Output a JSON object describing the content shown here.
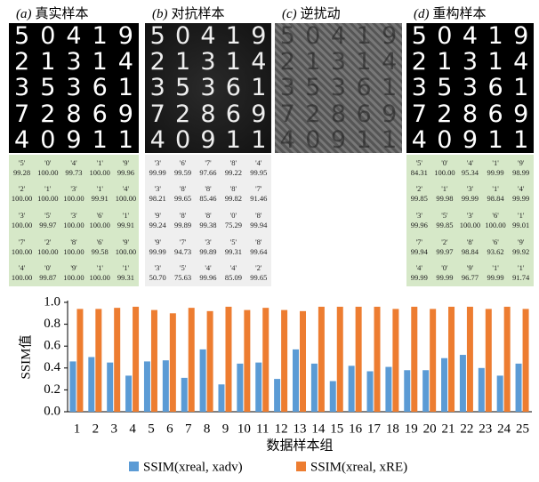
{
  "digits": [
    [
      "5",
      "0",
      "4",
      "1",
      "9"
    ],
    [
      "2",
      "1",
      "3",
      "1",
      "4"
    ],
    [
      "3",
      "5",
      "3",
      "6",
      "1"
    ],
    [
      "7",
      "2",
      "8",
      "6",
      "9"
    ],
    [
      "4",
      "0",
      "9",
      "1",
      "1"
    ]
  ],
  "panels": [
    {
      "tag": "(a)",
      "name": "真实样本",
      "table": [
        [
          {
            "label": "'5'",
            "value": "99.28"
          },
          {
            "label": "'0'",
            "value": "100.00"
          },
          {
            "label": "'4'",
            "value": "99.73"
          },
          {
            "label": "'1'",
            "value": "100.00"
          },
          {
            "label": "'9'",
            "value": "99.96"
          }
        ],
        [
          {
            "label": "'2'",
            "value": "100.00"
          },
          {
            "label": "'1'",
            "value": "100.00"
          },
          {
            "label": "'3'",
            "value": "100.00"
          },
          {
            "label": "'1'",
            "value": "99.91"
          },
          {
            "label": "'4'",
            "value": "100.00"
          }
        ],
        [
          {
            "label": "'3'",
            "value": "100.00"
          },
          {
            "label": "'5'",
            "value": "99.97"
          },
          {
            "label": "'3'",
            "value": "100.00"
          },
          {
            "label": "'6'",
            "value": "100.00"
          },
          {
            "label": "'1'",
            "value": "99.91"
          }
        ],
        [
          {
            "label": "'7'",
            "value": "100.00"
          },
          {
            "label": "'2'",
            "value": "100.00"
          },
          {
            "label": "'8'",
            "value": "100.00"
          },
          {
            "label": "'6'",
            "value": "99.58"
          },
          {
            "label": "'9'",
            "value": "100.00"
          }
        ],
        [
          {
            "label": "'4'",
            "value": "100.00"
          },
          {
            "label": "'0'",
            "value": "99.87"
          },
          {
            "label": "'9'",
            "value": "100.00"
          },
          {
            "label": "'1'",
            "value": "100.00"
          },
          {
            "label": "'1'",
            "value": "99.31"
          }
        ]
      ]
    },
    {
      "tag": "(b)",
      "name": "对抗样本",
      "table": [
        [
          {
            "label": "'3'",
            "value": "99.99"
          },
          {
            "label": "'6'",
            "value": "99.59"
          },
          {
            "label": "'7'",
            "value": "97.66"
          },
          {
            "label": "'8'",
            "value": "99.22"
          },
          {
            "label": "'4'",
            "value": "99.95"
          }
        ],
        [
          {
            "label": "'3'",
            "value": "98.21"
          },
          {
            "label": "'8'",
            "value": "99.65"
          },
          {
            "label": "'8'",
            "value": "85.46"
          },
          {
            "label": "'8'",
            "value": "99.82"
          },
          {
            "label": "'7'",
            "value": "91.46"
          }
        ],
        [
          {
            "label": "'9'",
            "value": "99.24"
          },
          {
            "label": "'8'",
            "value": "99.89"
          },
          {
            "label": "'8'",
            "value": "99.38"
          },
          {
            "label": "'0'",
            "value": "75.29"
          },
          {
            "label": "'8'",
            "value": "99.94"
          }
        ],
        [
          {
            "label": "'9'",
            "value": "99.99"
          },
          {
            "label": "'7'",
            "value": "94.73"
          },
          {
            "label": "'3'",
            "value": "99.89"
          },
          {
            "label": "'5'",
            "value": "99.31"
          },
          {
            "label": "'8'",
            "value": "99.64"
          }
        ],
        [
          {
            "label": "'3'",
            "value": "50.70"
          },
          {
            "label": "'5'",
            "value": "75.63"
          },
          {
            "label": "'4'",
            "value": "99.96"
          },
          {
            "label": "'4'",
            "value": "85.09"
          },
          {
            "label": "'2'",
            "value": "99.65"
          }
        ]
      ]
    },
    {
      "tag": "(c)",
      "name": "逆扰动"
    },
    {
      "tag": "(d)",
      "name": "重构样本",
      "table": [
        [
          {
            "label": "'5'",
            "value": "84.31"
          },
          {
            "label": "'0'",
            "value": "100.00"
          },
          {
            "label": "'4'",
            "value": "95.34"
          },
          {
            "label": "'1'",
            "value": "99.99"
          },
          {
            "label": "'9'",
            "value": "98.99"
          }
        ],
        [
          {
            "label": "'2'",
            "value": "99.85"
          },
          {
            "label": "'1'",
            "value": "99.98"
          },
          {
            "label": "'3'",
            "value": "99.99"
          },
          {
            "label": "'1'",
            "value": "98.84"
          },
          {
            "label": "'4'",
            "value": "99.99"
          }
        ],
        [
          {
            "label": "'3'",
            "value": "99.96"
          },
          {
            "label": "'5'",
            "value": "99.85"
          },
          {
            "label": "'3'",
            "value": "100.00"
          },
          {
            "label": "'6'",
            "value": "100.00"
          },
          {
            "label": "'1'",
            "value": "99.01"
          }
        ],
        [
          {
            "label": "'7'",
            "value": "99.94"
          },
          {
            "label": "'2'",
            "value": "99.97"
          },
          {
            "label": "'8'",
            "value": "98.84"
          },
          {
            "label": "'6'",
            "value": "93.62"
          },
          {
            "label": "'9'",
            "value": "99.92"
          }
        ],
        [
          {
            "label": "'4'",
            "value": "99.99"
          },
          {
            "label": "'0'",
            "value": "99.99"
          },
          {
            "label": "'9'",
            "value": "96.77"
          },
          {
            "label": "'1'",
            "value": "99.99"
          },
          {
            "label": "'1'",
            "value": "91.74"
          }
        ]
      ]
    }
  ],
  "chart_data": {
    "type": "bar",
    "y_label": "SSIM值",
    "x_label": "数据样本组",
    "categories": [
      "1",
      "2",
      "3",
      "4",
      "5",
      "6",
      "7",
      "8",
      "9",
      "10",
      "11",
      "12",
      "13",
      "14",
      "15",
      "16",
      "17",
      "18",
      "19",
      "20",
      "21",
      "22",
      "23",
      "24",
      "25"
    ],
    "series": [
      {
        "name": "SSIM(xreal, xadv)",
        "color": "#5b9bd5",
        "values": [
          0.46,
          0.5,
          0.45,
          0.33,
          0.46,
          0.47,
          0.31,
          0.57,
          0.25,
          0.44,
          0.45,
          0.3,
          0.57,
          0.44,
          0.28,
          0.42,
          0.37,
          0.41,
          0.38,
          0.38,
          0.49,
          0.52,
          0.4,
          0.33,
          0.44
        ]
      },
      {
        "name": "SSIM(xreal, xRE)",
        "color": "#ed7d31",
        "values": [
          0.94,
          0.94,
          0.95,
          0.96,
          0.93,
          0.9,
          0.95,
          0.92,
          0.96,
          0.93,
          0.95,
          0.93,
          0.92,
          0.96,
          0.96,
          0.96,
          0.96,
          0.94,
          0.96,
          0.94,
          0.96,
          0.96,
          0.94,
          0.96,
          0.94
        ]
      }
    ],
    "ylim": [
      0,
      1
    ],
    "yticks": [
      {
        "value": 0,
        "label": "0.0"
      },
      0.2,
      0.4,
      0.6,
      0.8,
      {
        "value": 1,
        "label": "1.0"
      }
    ],
    "grid": false
  }
}
